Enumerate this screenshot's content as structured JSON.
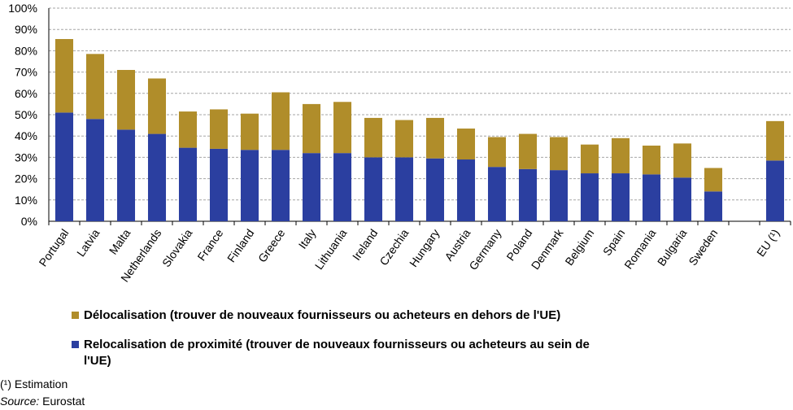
{
  "chart_data": {
    "type": "bar",
    "stacked": true,
    "categories": [
      "Portugal",
      "Latvia",
      "Malta",
      "Netherlands",
      "Slovakia",
      "France",
      "Finland",
      "Greece",
      "Italy",
      "Lithuania",
      "Ireland",
      "Czechia",
      "Hungary",
      "Austria",
      "Germany",
      "Poland",
      "Denmark",
      "Belgium",
      "Spain",
      "Romania",
      "Bulgaria",
      "Sweden",
      "",
      "EU (¹)"
    ],
    "series": [
      {
        "name": "Relocalisation de proximité (trouver de nouveaux fournisseurs ou acheteurs au sein de l'UE)",
        "color": "#2b3fa0",
        "values": [
          51,
          48,
          43,
          41,
          34.5,
          34,
          33.5,
          33.5,
          32,
          32,
          30,
          30,
          29.5,
          29,
          25.5,
          24.5,
          24,
          22.5,
          22.5,
          22,
          20.5,
          14,
          null,
          28.5
        ]
      },
      {
        "name": "Délocalisation (trouver de nouveaux fournisseurs ou acheteurs en dehors de l'UE)",
        "color": "#b08d2a",
        "values": [
          34.5,
          30.5,
          28,
          26,
          17,
          18.5,
          17,
          27,
          23,
          24,
          18.5,
          17.5,
          19,
          14.5,
          14,
          16.5,
          15.5,
          13.5,
          16.5,
          13.5,
          16,
          11,
          null,
          18.5
        ]
      }
    ],
    "ylim": [
      0,
      100
    ],
    "yticks": [
      "0%",
      "10%",
      "20%",
      "30%",
      "40%",
      "50%",
      "60%",
      "70%",
      "80%",
      "90%",
      "100%"
    ],
    "grid": true,
    "legend_position": "bottom-left"
  },
  "legend": {
    "delocalisation": "Délocalisation (trouver de nouveaux fournisseurs ou acheteurs en dehors de l'UE)",
    "relocalisation": "Relocalisation de proximité (trouver de nouveaux fournisseurs ou acheteurs au sein de l'UE)"
  },
  "footnote": "(¹) Estimation",
  "source": {
    "label": "Source:",
    "value": "Eurostat"
  }
}
